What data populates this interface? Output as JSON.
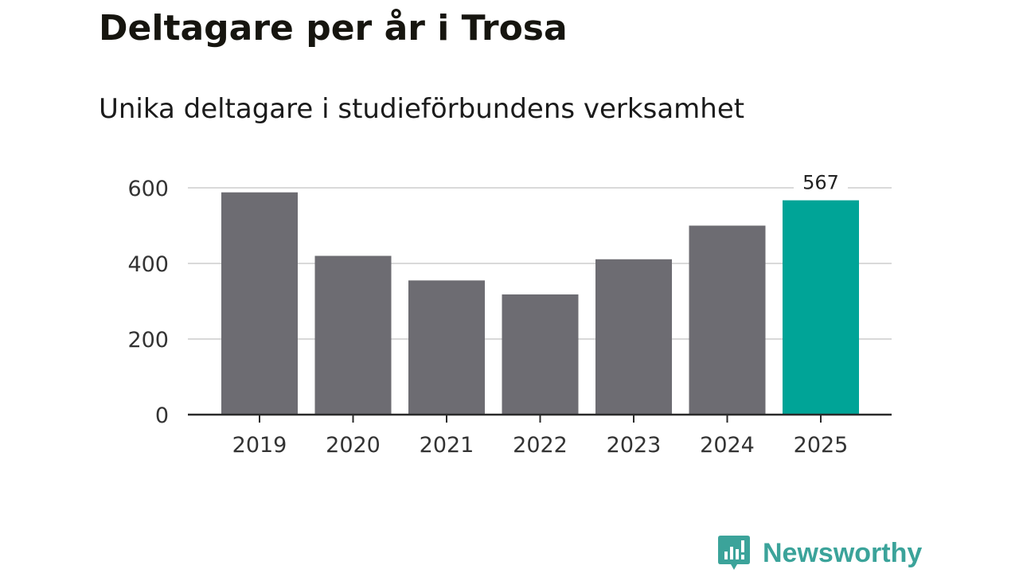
{
  "chart_data": {
    "type": "bar",
    "title": "Deltagare per år i Trosa",
    "subtitle": "Unika deltagare i studieförbundens verksamhet",
    "categories": [
      "2019",
      "2020",
      "2021",
      "2022",
      "2023",
      "2024",
      "2025"
    ],
    "values": [
      588,
      420,
      355,
      318,
      411,
      500,
      567
    ],
    "highlight_index": 6,
    "data_labels": [
      {
        "index": 6,
        "text": "567"
      }
    ],
    "xlabel": "",
    "ylabel": "",
    "ylim": [
      0,
      600
    ],
    "yticks": [
      0,
      200,
      400,
      600
    ],
    "ytick_labels": [
      "0",
      "200",
      "400",
      "600"
    ],
    "grid": true,
    "legend": "none",
    "colors": {
      "bar": "#6d6c72",
      "highlight": "#00a497",
      "grid": "#d9d9d9",
      "axis": "#2a2a2a"
    }
  },
  "branding": {
    "logo_text": "Newsworthy",
    "logo_color": "#3ba39a",
    "logo_icon": "bar-chart-icon"
  }
}
